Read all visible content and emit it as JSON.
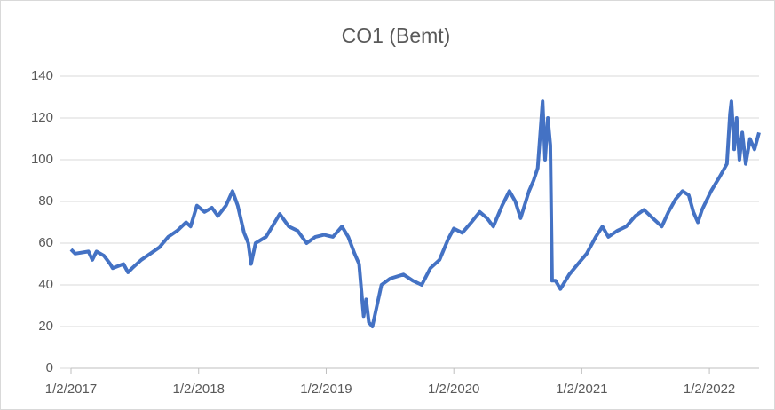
{
  "chart_data": {
    "type": "line",
    "title": "CO1  (Bemt)",
    "x": [
      "1/2/2017",
      "1/14/2017",
      "2/21/2017",
      "3/4/2017",
      "3/16/2017",
      "4/6/2017",
      "4/24/2017",
      "5/1/2017",
      "6/1/2017",
      "6/14/2017",
      "6/26/2017",
      "7/22/2017",
      "8/17/2017",
      "9/12/2017",
      "10/7/2017",
      "11/2/2017",
      "11/27/2017",
      "12/10/2017",
      "12/28/2017",
      "1/19/2018",
      "2/9/2018",
      "2/26/2018",
      "3/21/2018",
      "4/9/2018",
      "4/24/2018",
      "5/12/2018",
      "5/24/2018",
      "6/1/2018",
      "6/14/2018",
      "7/14/2018",
      "8/22/2018",
      "9/17/2018",
      "10/12/2018",
      "11/7/2018",
      "12/2/2018",
      "12/27/2018",
      "1/21/2019",
      "2/16/2019",
      "3/6/2019",
      "3/24/2019",
      "4/6/2019",
      "4/19/2019",
      "4/26/2019",
      "5/4/2019",
      "5/14/2019",
      "5/27/2019",
      "6/9/2019",
      "7/4/2019",
      "8/11/2019",
      "9/7/2019",
      "10/2/2019",
      "10/27/2019",
      "11/22/2019",
      "12/17/2019",
      "1/2/2020",
      "1/26/2020",
      "2/21/2020",
      "3/16/2020",
      "4/6/2020",
      "4/24/2020",
      "5/19/2020",
      "6/9/2020",
      "6/26/2020",
      "7/11/2020",
      "8/4/2020",
      "8/17/2020",
      "8/29/2020",
      "9/12/2020",
      "9/19/2020",
      "9/27/2020",
      "10/4/2020",
      "10/9/2020",
      "10/19/2020",
      "11/2/2020",
      "11/27/2020",
      "12/22/2020",
      "1/16/2021",
      "2/11/2021",
      "3/2/2021",
      "3/19/2021",
      "4/14/2021",
      "5/9/2021",
      "6/4/2021",
      "6/29/2021",
      "7/24/2021",
      "8/19/2021",
      "9/7/2021",
      "9/27/2021",
      "10/17/2021",
      "11/4/2021",
      "11/17/2021",
      "11/30/2021",
      "12/12/2021",
      "1/7/2022",
      "2/1/2022",
      "2/21/2022",
      "3/2/2022",
      "3/6/2022",
      "3/14/2022",
      "3/21/2022",
      "3/29/2022",
      "4/6/2022",
      "4/16/2022",
      "4/28/2022",
      "5/11/2022",
      "5/24/2022"
    ],
    "values": [
      57,
      55,
      56,
      52,
      56,
      54,
      50,
      48,
      50,
      46,
      48,
      52,
      55,
      58,
      63,
      66,
      70,
      68,
      78,
      75,
      77,
      73,
      78,
      85,
      78,
      65,
      60,
      50,
      60,
      63,
      74,
      68,
      66,
      60,
      63,
      64,
      63,
      68,
      63,
      55,
      50,
      25,
      33,
      22,
      20,
      30,
      40,
      43,
      45,
      42,
      40,
      48,
      52,
      62,
      67,
      65,
      70,
      75,
      72,
      68,
      78,
      85,
      80,
      72,
      85,
      90,
      96,
      128,
      100,
      120,
      107,
      42,
      42,
      38,
      45,
      50,
      55,
      63,
      68,
      63,
      66,
      68,
      73,
      76,
      72,
      68,
      75,
      81,
      85,
      83,
      75,
      70,
      76,
      85,
      92,
      98,
      122,
      128,
      105,
      120,
      100,
      113,
      98,
      110,
      105,
      113
    ],
    "color": "#4472c4",
    "xlim": [
      "1/2/2017",
      "5/24/2022"
    ],
    "xticks": [
      "1/2/2017",
      "1/2/2018",
      "1/2/2019",
      "1/2/2020",
      "1/2/2021",
      "1/2/2022"
    ],
    "ylim": [
      0,
      140
    ],
    "yticks": [
      0,
      20,
      40,
      60,
      80,
      100,
      120,
      140
    ],
    "grid": true
  }
}
